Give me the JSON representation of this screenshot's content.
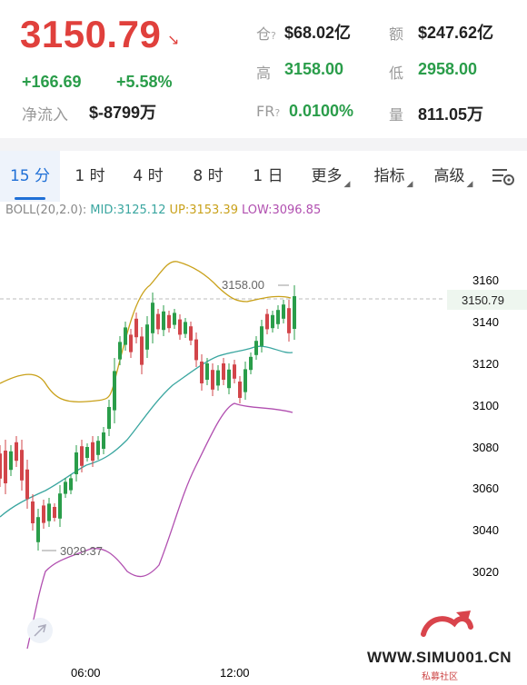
{
  "ticker": {
    "price": "3150.79",
    "price_arrow": "↘",
    "change_abs": "+166.69",
    "change_pct": "+5.58%",
    "net_inflow_label": "净流入",
    "net_inflow_value": "$-8799万"
  },
  "stats": {
    "open_interest_label": "仓",
    "open_interest_value": "$68.02亿",
    "amount_label": "额",
    "amount_value": "$247.62亿",
    "high_label": "高",
    "high_value": "3158.00",
    "low_label": "低",
    "low_value": "2958.00",
    "fr_label": "FR",
    "fr_value": "0.0100%",
    "volume_label": "量",
    "volume_value": "811.05万"
  },
  "tabs": [
    {
      "label": "15 分",
      "active": true
    },
    {
      "label": "1 时"
    },
    {
      "label": "4 时"
    },
    {
      "label": "8 时"
    },
    {
      "label": "1 日"
    },
    {
      "label": "更多"
    },
    {
      "label": "指标"
    },
    {
      "label": "高级"
    }
  ],
  "indicator": {
    "name": "BOLL(20,2.0):",
    "mid": "MID:3125.12",
    "up": "UP:3153.39",
    "low": "LOW:3096.85",
    "mid_color": "#3aa6a0",
    "up_color": "#c9a11a",
    "low_color": "#b14fb0"
  },
  "chart": {
    "y_ticks": [
      "3160",
      "3140",
      "3120",
      "3100",
      "3080",
      "3060",
      "3040",
      "3020"
    ],
    "x_ticks": [
      "06:00",
      "12:00"
    ],
    "current_price_label": "3150.79",
    "high_marker": "3158.00",
    "low_marker": "3029.37",
    "up_color": "#2a9d4a",
    "down_color": "#d2454a"
  },
  "watermark": {
    "site": "WWW.SIMU001.CN",
    "sub": "私募社区"
  }
}
